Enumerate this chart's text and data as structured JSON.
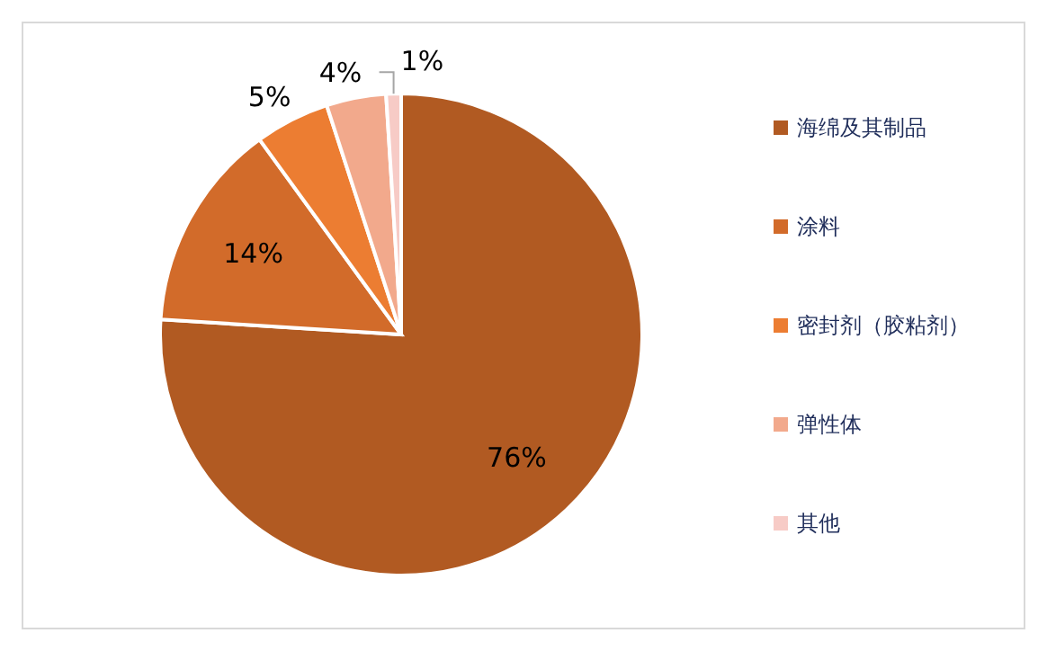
{
  "chart_data": {
    "type": "pie",
    "categories": [
      "海绵及其制品",
      "涂料",
      "密封剂（胶粘剂）",
      "弹性体",
      "其他"
    ],
    "values": [
      76,
      14,
      5,
      4,
      1
    ],
    "colors": [
      "#b15a22",
      "#d26b2a",
      "#ec7d32",
      "#f2a98c",
      "#f7cbc6"
    ],
    "value_labels": [
      "76%",
      "14%",
      "5%",
      "4%",
      "1%"
    ],
    "legend": "right"
  }
}
